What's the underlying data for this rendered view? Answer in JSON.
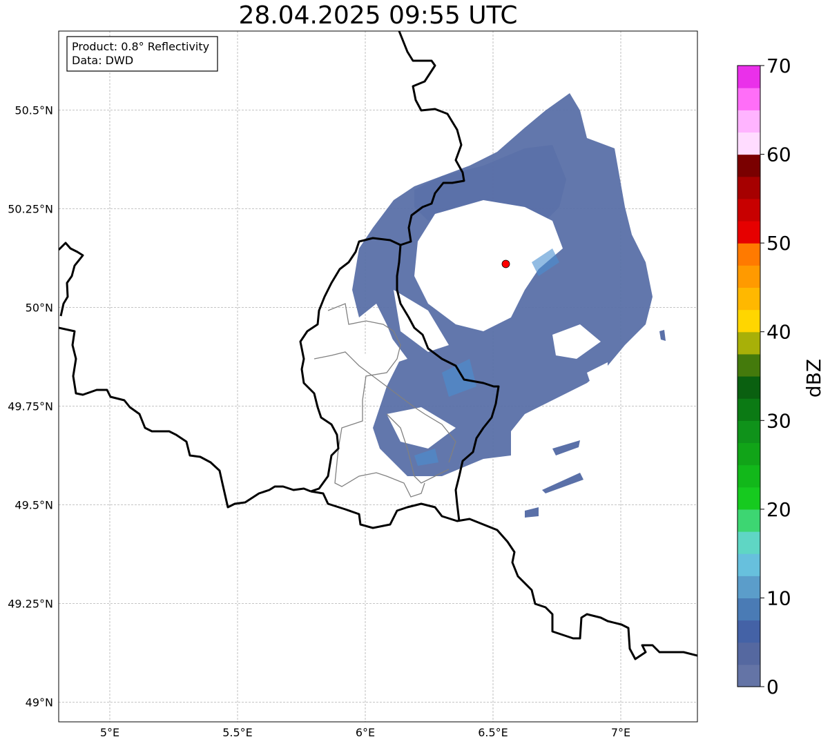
{
  "title": "28.04.2025 09:55 UTC",
  "info_box": {
    "product": "Product: 0.8° Reflectivity",
    "source": "Data: DWD"
  },
  "colors": {
    "border": "#000000",
    "minor_border": "#808080",
    "gridline": "#b0b0b0",
    "radar_marker": "#ff0000",
    "echo_base": "#5a70a8",
    "echo_bright": "#4a90d0"
  },
  "chart_data": {
    "type": "map",
    "lon_range": [
      4.8,
      7.3
    ],
    "lat_range": [
      48.95,
      50.7
    ],
    "lon_ticks": [
      {
        "value": 5.0,
        "label": "5°E"
      },
      {
        "value": 5.5,
        "label": "5.5°E"
      },
      {
        "value": 6.0,
        "label": "6°E"
      },
      {
        "value": 6.5,
        "label": "6.5°E"
      },
      {
        "value": 7.0,
        "label": "7°E"
      }
    ],
    "lat_ticks": [
      {
        "value": 50.5,
        "label": "50.5°N"
      },
      {
        "value": 50.25,
        "label": "50.25°N"
      },
      {
        "value": 50.0,
        "label": "50°N"
      },
      {
        "value": 49.75,
        "label": "49.75°N"
      },
      {
        "value": 49.5,
        "label": "49.5°N"
      },
      {
        "value": 49.25,
        "label": "49.25°N"
      },
      {
        "value": 49.0,
        "label": "49°N"
      }
    ],
    "grid": true,
    "radar_site": {
      "lon": 6.55,
      "lat": 50.11
    },
    "colorbar": {
      "label": "dBZ",
      "min": 0,
      "max": 70,
      "step": 2.5,
      "tick_values": [
        0,
        10,
        20,
        30,
        40,
        50,
        60,
        70
      ],
      "tick_labels": [
        "0",
        "10",
        "20",
        "30",
        "40",
        "50",
        "60",
        "70"
      ],
      "colors": [
        "#6474a6",
        "#5568a0",
        "#4462a6",
        "#4a7bb5",
        "#5b9dca",
        "#67c0dd",
        "#5fd6c4",
        "#3dd672",
        "#16ca1f",
        "#12b81a",
        "#11a418",
        "#0f921a",
        "#0b7a14",
        "#0a6010",
        "#447a0c",
        "#a8b008",
        "#ffd600",
        "#ffb800",
        "#ff9a00",
        "#ff7a00",
        "#e60000",
        "#c80000",
        "#a60000",
        "#7a0000",
        "#ffdcff",
        "#ffb4ff",
        "#ff6ef8",
        "#ea30ea"
      ]
    }
  }
}
